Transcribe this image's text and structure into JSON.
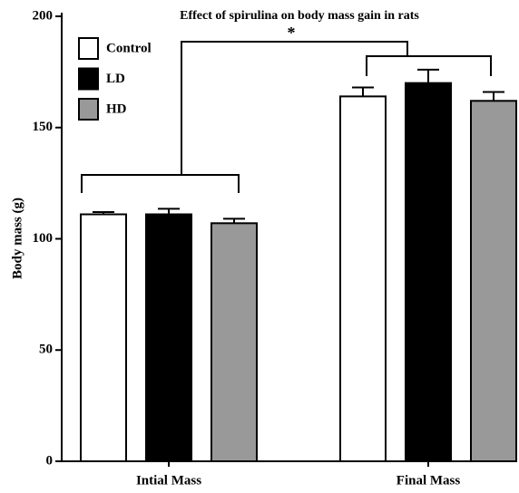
{
  "chart_data": {
    "type": "bar",
    "title": "Effect of spirulina on body mass gain in rats",
    "ylabel": "Body mass (g)",
    "categories": [
      "Intial Mass",
      "Final Mass"
    ],
    "series": [
      {
        "name": "Control",
        "color": "#ffffff",
        "values": [
          111,
          164
        ],
        "errors": [
          1,
          4
        ]
      },
      {
        "name": "LD",
        "color": "#000000",
        "values": [
          111,
          170
        ],
        "errors": [
          2.5,
          6
        ]
      },
      {
        "name": "HD",
        "color": "#999999",
        "values": [
          107,
          162
        ],
        "errors": [
          2,
          4
        ]
      }
    ],
    "annotation": "*",
    "ylim": [
      0,
      200
    ],
    "yticks": [
      0,
      50,
      100,
      150,
      200
    ],
    "grid": false
  }
}
